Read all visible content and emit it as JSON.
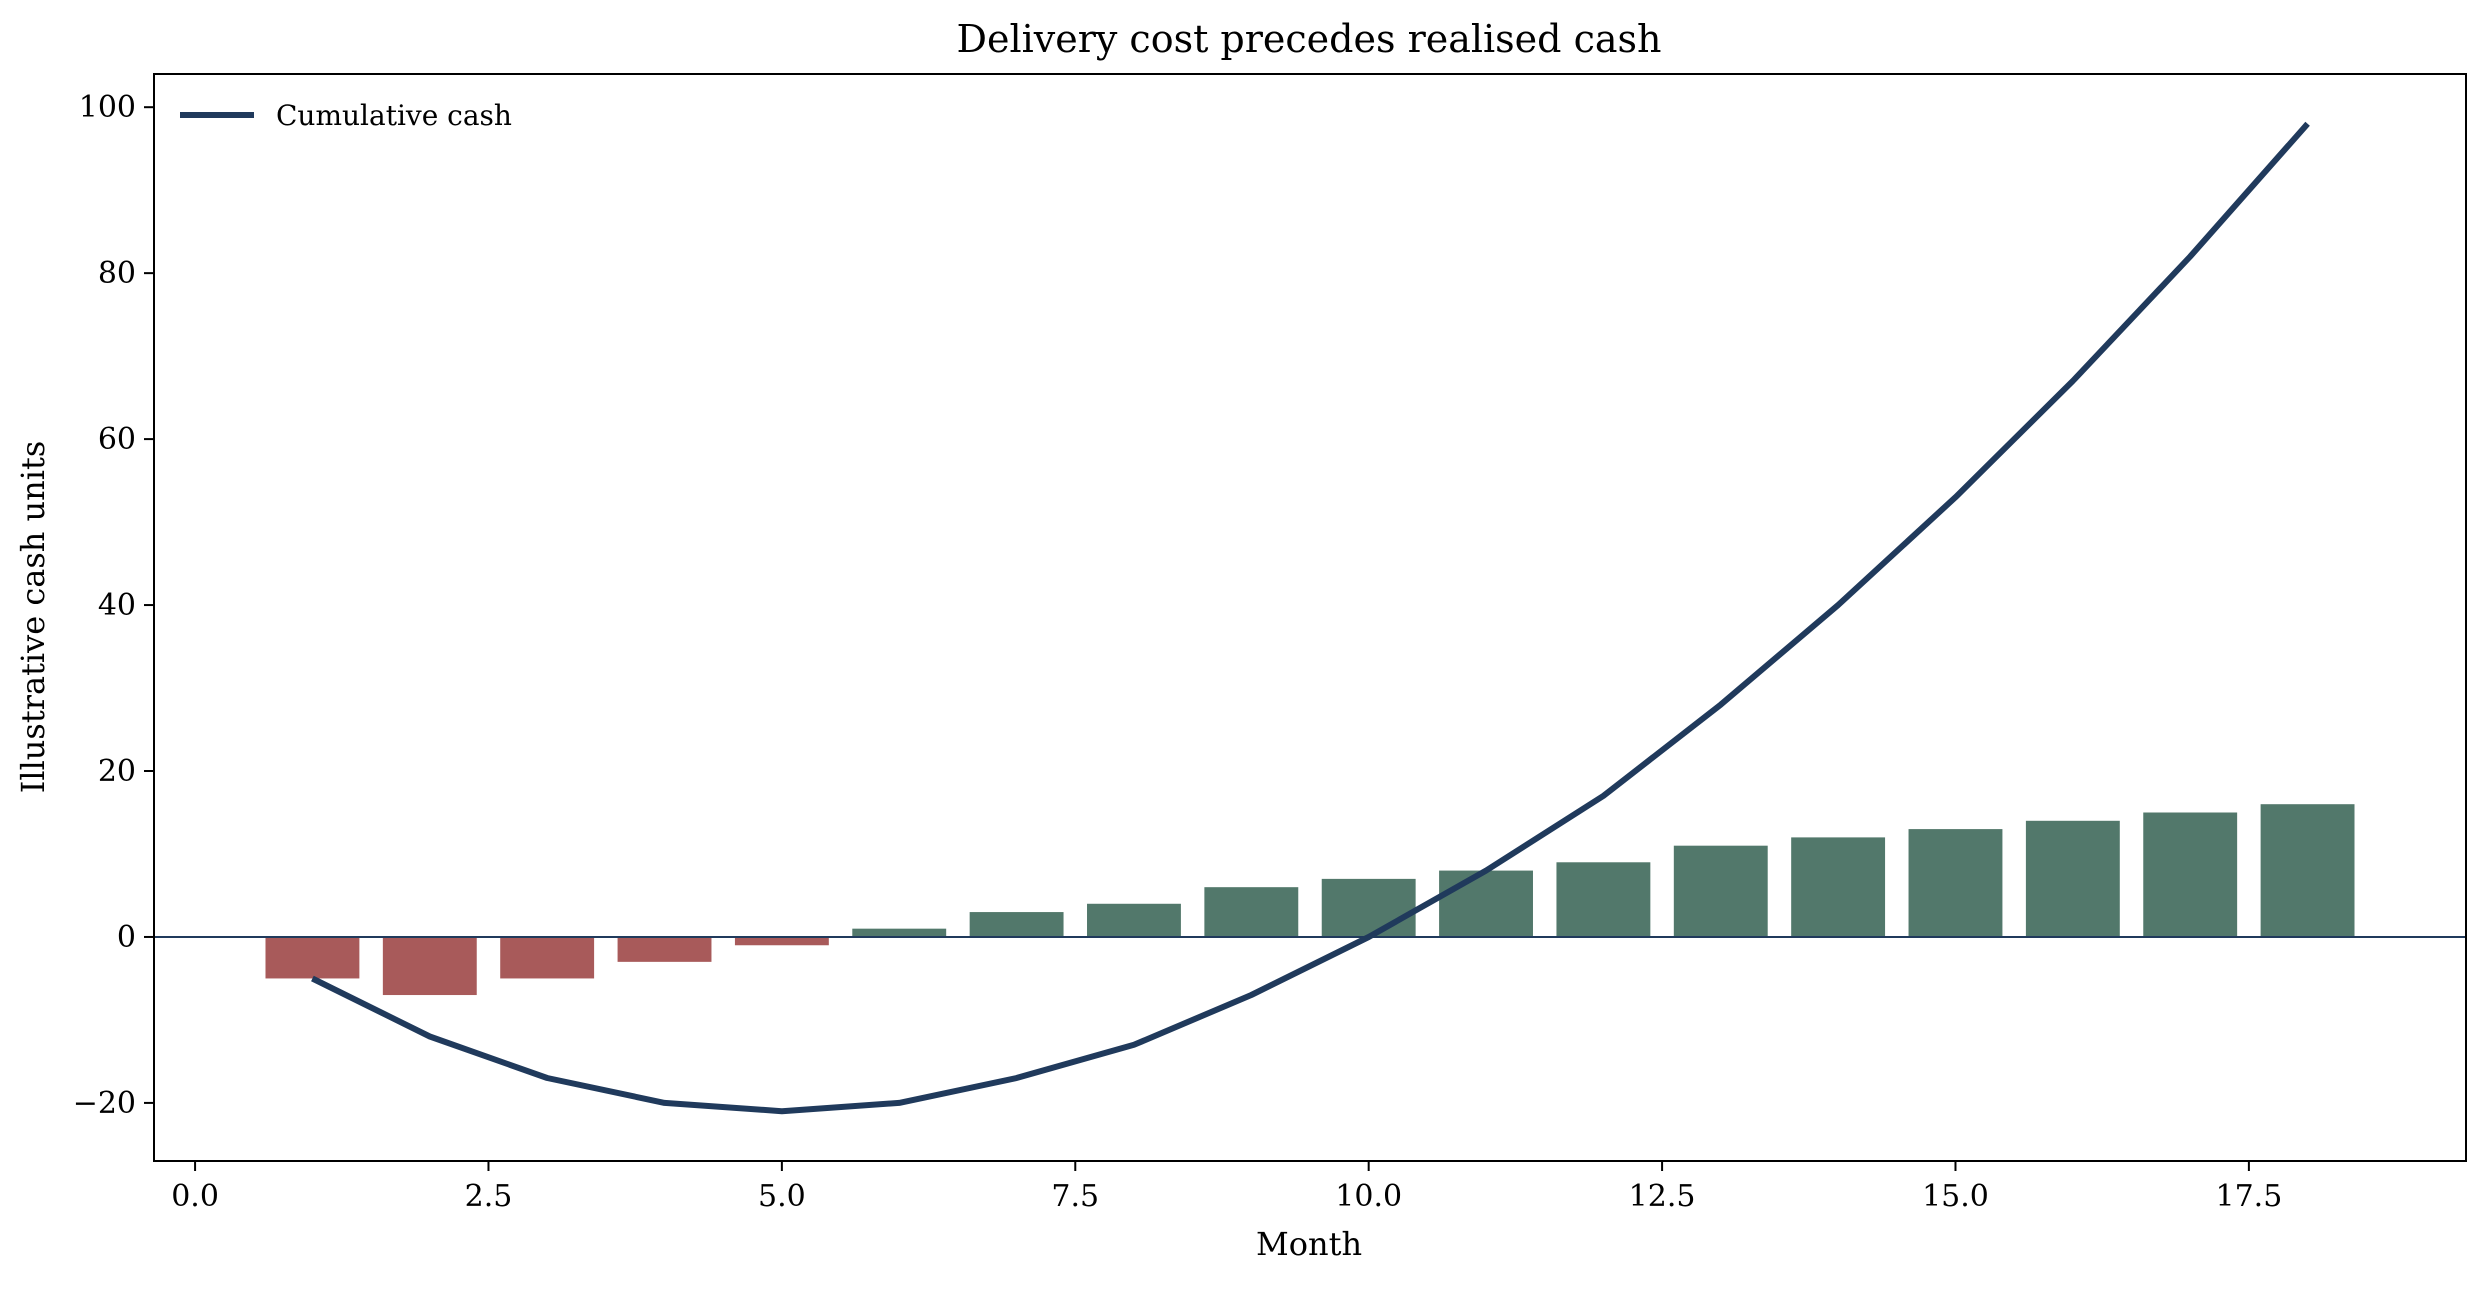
{
  "chart_data": {
    "type": "bar",
    "title": "Delivery cost precedes realised cash",
    "xlabel": "Month",
    "ylabel": "Illustrative cash units",
    "xlim": [
      -0.35,
      19.35
    ],
    "ylim": [
      -27,
      104
    ],
    "x_ticks": [
      0.0,
      2.5,
      5.0,
      7.5,
      10.0,
      12.5,
      15.0,
      17.5
    ],
    "x_tick_labels": [
      "0.0",
      "2.5",
      "5.0",
      "7.5",
      "10.0",
      "12.5",
      "15.0",
      "17.5"
    ],
    "y_ticks": [
      -20,
      0,
      20,
      40,
      60,
      80,
      100
    ],
    "y_tick_labels": [
      "−20",
      "0",
      "20",
      "40",
      "60",
      "80",
      "100"
    ],
    "grid": false,
    "legend": {
      "placement": "top-left",
      "entries": [
        "Cumulative cash"
      ]
    },
    "zero_line": true,
    "x": [
      1,
      2,
      3,
      4,
      5,
      6,
      7,
      8,
      9,
      10,
      11,
      12,
      13,
      14,
      15,
      16,
      17,
      18
    ],
    "bars": {
      "values": [
        -5,
        -7,
        -5,
        -3,
        -1,
        1,
        3,
        4,
        6,
        7,
        8,
        9,
        11,
        12,
        13,
        14,
        15,
        16
      ],
      "positive_color": "#52786b",
      "negative_color": "#a85a5a"
    },
    "series": [
      {
        "name": "Cumulative cash",
        "type": "line",
        "color": "#203a5c",
        "values": [
          -5,
          -12,
          -17,
          -20,
          -21,
          -20,
          -17,
          -13,
          -7,
          0,
          8,
          17,
          28,
          40,
          53,
          67,
          82,
          98
        ]
      }
    ]
  }
}
